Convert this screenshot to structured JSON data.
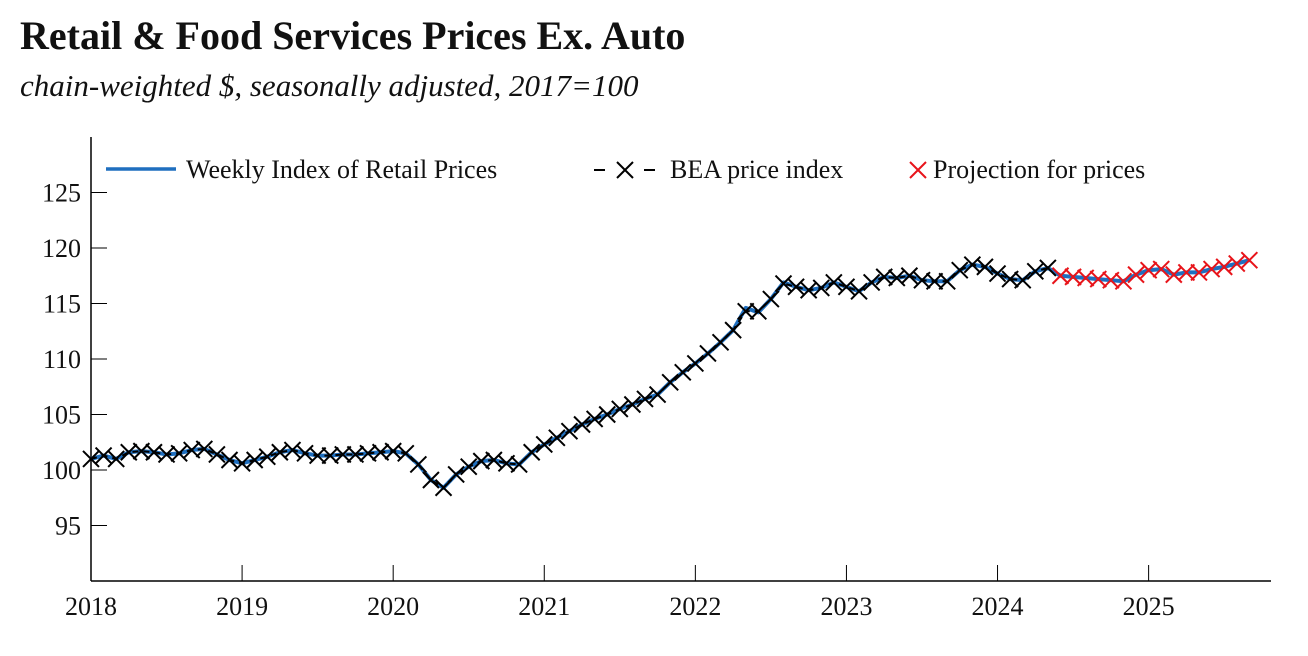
{
  "chart_data": {
    "type": "line",
    "title": "Retail & Food Services Prices Ex. Auto",
    "subtitle": "chain-weighted $, seasonally adjusted, 2017=100",
    "xlabel": "",
    "ylabel": "",
    "xlim": [
      2018,
      2025.81
    ],
    "ylim": [
      90,
      130
    ],
    "yticks": [
      95,
      100,
      105,
      110,
      115,
      120,
      125
    ],
    "xticks": [
      2018,
      2019,
      2020,
      2021,
      2022,
      2023,
      2024,
      2025
    ],
    "grid": false,
    "legend_position": "top",
    "colors": {
      "weekly": "#1f6fbf",
      "bea": "#000000",
      "projection": "#e8141a"
    },
    "series": [
      {
        "name": "Weekly Index of Retail Prices",
        "style": "line",
        "start": 2018.0,
        "step": "monthly",
        "values": [
          101.0,
          101.3,
          101.0,
          101.6,
          101.7,
          101.6,
          101.4,
          101.5,
          101.8,
          101.9,
          101.4,
          100.9,
          100.6,
          100.9,
          101.2,
          101.6,
          101.8,
          101.5,
          101.3,
          101.3,
          101.4,
          101.4,
          101.5,
          101.6,
          101.7,
          101.5,
          100.5,
          99.1,
          98.4,
          99.6,
          100.3,
          100.8,
          100.9,
          100.6,
          100.5,
          101.6,
          102.3,
          102.9,
          103.5,
          104.1,
          104.6,
          105.0,
          105.5,
          105.9,
          106.4,
          106.8,
          107.9,
          108.8,
          109.6,
          110.5,
          111.5,
          112.6,
          114.6,
          114.2,
          115.4,
          116.9,
          116.5,
          116.2,
          116.4,
          116.9,
          116.5,
          116.1,
          116.9,
          117.4,
          117.3,
          117.5,
          117.1,
          117.0,
          117.0,
          118.0,
          118.5,
          118.3,
          117.7,
          117.2,
          117.1,
          117.9,
          118.2,
          117.5,
          117.4,
          117.3,
          117.2,
          117.1,
          117.0,
          117.6,
          118.0,
          118.1,
          117.6,
          117.8,
          117.8,
          118.1,
          118.3,
          118.6,
          118.9
        ]
      },
      {
        "name": "BEA price index",
        "style": "dashed-x",
        "start": 2018.0,
        "step": "monthly",
        "values": [
          101.0,
          101.3,
          101.0,
          101.6,
          101.7,
          101.6,
          101.4,
          101.5,
          101.8,
          101.9,
          101.4,
          100.9,
          100.6,
          100.9,
          101.2,
          101.6,
          101.8,
          101.5,
          101.3,
          101.3,
          101.4,
          101.4,
          101.5,
          101.6,
          101.7,
          101.5,
          100.5,
          99.1,
          98.4,
          99.6,
          100.3,
          100.8,
          100.9,
          100.6,
          100.5,
          101.6,
          102.3,
          102.9,
          103.5,
          104.1,
          104.6,
          105.0,
          105.5,
          105.9,
          106.4,
          106.8,
          107.9,
          108.8,
          109.6,
          110.5,
          111.5,
          112.6,
          114.3,
          114.3,
          115.4,
          116.8,
          116.5,
          116.2,
          116.4,
          116.9,
          116.5,
          116.1,
          116.9,
          117.4,
          117.3,
          117.5,
          117.1,
          117.0,
          117.0,
          118.0,
          118.5,
          118.3,
          117.7,
          117.2,
          117.1,
          117.9,
          118.2
        ]
      },
      {
        "name": "Projection for prices",
        "style": "x-markers",
        "start": 2024.4167,
        "step": "monthly",
        "values": [
          117.5,
          117.4,
          117.3,
          117.2,
          117.1,
          117.0,
          117.6,
          118.0,
          118.1,
          117.6,
          117.8,
          117.8,
          118.1,
          118.3,
          118.6,
          118.9
        ]
      }
    ]
  }
}
